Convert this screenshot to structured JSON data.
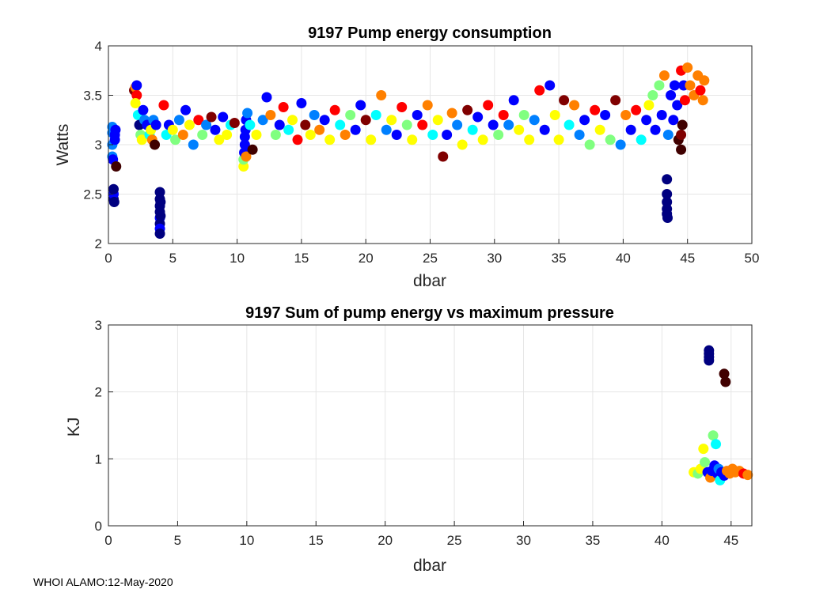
{
  "footer": "WHOI ALAMO:12-May-2020",
  "colormap": [
    "#000080",
    "#0000ff",
    "#0080ff",
    "#00ffff",
    "#80ff80",
    "#ffff00",
    "#ff8000",
    "#ff0000",
    "#800000",
    "#400000"
  ],
  "chart_data": [
    {
      "type": "scatter",
      "title": "9197 Pump energy consumption",
      "xlabel": "dbar",
      "ylabel": "Watts",
      "xlim": [
        0,
        50
      ],
      "ylim": [
        2,
        4
      ],
      "xticks": [
        0,
        5,
        10,
        15,
        20,
        25,
        30,
        35,
        40,
        45,
        50
      ],
      "yticks": [
        2,
        2.5,
        3,
        3.5,
        4
      ],
      "grid": true,
      "color_by": "profile index (jet colormap, early=dark blue, late=dark red)",
      "points": [
        [
          0.3,
          2.88,
          0.18
        ],
        [
          0.3,
          3.0,
          0.2
        ],
        [
          0.3,
          3.12,
          0.2
        ],
        [
          0.3,
          3.18,
          0.22
        ],
        [
          0.35,
          2.85,
          0.16
        ],
        [
          0.4,
          2.45,
          0.04
        ],
        [
          0.4,
          2.5,
          0.06
        ],
        [
          0.4,
          2.55,
          0.03
        ],
        [
          0.45,
          2.42,
          0.02
        ],
        [
          0.5,
          3.1,
          0.12
        ],
        [
          0.5,
          3.05,
          0.15
        ],
        [
          0.6,
          2.78,
          0.95
        ],
        [
          0.55,
          3.15,
          0.1
        ],
        [
          2.0,
          3.55,
          0.85
        ],
        [
          2.1,
          3.58,
          0.72
        ],
        [
          2.2,
          3.6,
          0.15
        ],
        [
          2.2,
          3.5,
          0.8
        ],
        [
          2.1,
          3.42,
          0.5
        ],
        [
          2.3,
          3.3,
          0.35
        ],
        [
          2.4,
          3.2,
          0.05
        ],
        [
          2.5,
          3.1,
          0.4
        ],
        [
          2.6,
          3.05,
          0.55
        ],
        [
          2.7,
          3.35,
          0.12
        ],
        [
          2.8,
          3.25,
          0.18
        ],
        [
          3.0,
          3.2,
          0.1
        ],
        [
          3.2,
          3.1,
          0.3
        ],
        [
          3.3,
          3.15,
          0.5
        ],
        [
          3.4,
          3.05,
          0.65
        ],
        [
          3.5,
          3.25,
          0.2
        ],
        [
          3.6,
          3.0,
          0.95
        ],
        [
          3.7,
          3.2,
          0.15
        ],
        [
          4.0,
          2.52,
          0.04
        ],
        [
          4.0,
          2.45,
          0.05
        ],
        [
          4.0,
          2.38,
          0.03
        ],
        [
          4.0,
          2.32,
          0.04
        ],
        [
          4.0,
          2.26,
          0.06
        ],
        [
          4.0,
          2.2,
          0.05
        ],
        [
          4.0,
          2.15,
          0.07
        ],
        [
          4.0,
          2.1,
          0.05
        ],
        [
          4.05,
          2.42,
          0.03
        ],
        [
          4.05,
          2.28,
          0.04
        ],
        [
          4.3,
          3.4,
          0.75
        ],
        [
          4.5,
          3.1,
          0.3
        ],
        [
          4.7,
          3.2,
          0.1
        ],
        [
          5.0,
          3.15,
          0.6
        ],
        [
          5.2,
          3.05,
          0.45
        ],
        [
          5.5,
          3.25,
          0.2
        ],
        [
          5.8,
          3.1,
          0.7
        ],
        [
          6.0,
          3.35,
          0.15
        ],
        [
          6.3,
          3.2,
          0.5
        ],
        [
          6.6,
          3.0,
          0.2
        ],
        [
          7.0,
          3.25,
          0.8
        ],
        [
          7.3,
          3.1,
          0.4
        ],
        [
          7.6,
          3.2,
          0.25
        ],
        [
          8.0,
          3.28,
          0.9
        ],
        [
          8.3,
          3.15,
          0.1
        ],
        [
          8.6,
          3.05,
          0.55
        ],
        [
          8.9,
          3.28,
          0.15
        ],
        [
          9.2,
          3.1,
          0.6
        ],
        [
          9.5,
          3.2,
          0.3
        ],
        [
          9.8,
          3.22,
          0.85
        ],
        [
          10.5,
          2.78,
          0.55
        ],
        [
          10.5,
          2.85,
          0.4
        ],
        [
          10.55,
          2.92,
          0.1
        ],
        [
          10.6,
          3.0,
          0.08
        ],
        [
          10.6,
          3.08,
          0.12
        ],
        [
          10.65,
          3.15,
          0.1
        ],
        [
          10.7,
          2.88,
          0.65
        ],
        [
          10.7,
          3.25,
          0.1
        ],
        [
          10.8,
          3.32,
          0.18
        ],
        [
          11.0,
          3.2,
          0.3
        ],
        [
          11.2,
          2.95,
          0.95
        ],
        [
          11.5,
          3.1,
          0.6
        ],
        [
          12.0,
          3.25,
          0.25
        ],
        [
          12.3,
          3.48,
          0.12
        ],
        [
          12.6,
          3.3,
          0.7
        ],
        [
          13.0,
          3.1,
          0.45
        ],
        [
          13.3,
          3.2,
          0.15
        ],
        [
          13.6,
          3.38,
          0.8
        ],
        [
          14.0,
          3.15,
          0.35
        ],
        [
          14.3,
          3.25,
          0.6
        ],
        [
          14.7,
          3.05,
          0.75
        ],
        [
          15.0,
          3.42,
          0.1
        ],
        [
          15.3,
          3.2,
          0.85
        ],
        [
          15.7,
          3.1,
          0.5
        ],
        [
          16.0,
          3.3,
          0.2
        ],
        [
          16.4,
          3.15,
          0.65
        ],
        [
          16.8,
          3.25,
          0.12
        ],
        [
          17.2,
          3.05,
          0.55
        ],
        [
          17.6,
          3.35,
          0.8
        ],
        [
          18.0,
          3.2,
          0.3
        ],
        [
          18.4,
          3.1,
          0.7
        ],
        [
          18.8,
          3.3,
          0.45
        ],
        [
          19.2,
          3.15,
          0.15
        ],
        [
          19.6,
          3.4,
          0.1
        ],
        [
          20.0,
          3.25,
          0.85
        ],
        [
          20.4,
          3.05,
          0.5
        ],
        [
          20.8,
          3.3,
          0.35
        ],
        [
          21.2,
          3.5,
          0.72
        ],
        [
          21.6,
          3.15,
          0.2
        ],
        [
          22.0,
          3.25,
          0.6
        ],
        [
          22.4,
          3.1,
          0.1
        ],
        [
          22.8,
          3.38,
          0.8
        ],
        [
          23.2,
          3.2,
          0.4
        ],
        [
          23.6,
          3.05,
          0.55
        ],
        [
          24.0,
          3.3,
          0.15
        ],
        [
          24.4,
          3.2,
          0.75
        ],
        [
          24.8,
          3.4,
          0.62
        ],
        [
          25.2,
          3.1,
          0.3
        ],
        [
          25.6,
          3.25,
          0.5
        ],
        [
          26.0,
          2.88,
          0.92
        ],
        [
          26.3,
          3.1,
          0.12
        ],
        [
          26.7,
          3.32,
          0.65
        ],
        [
          27.1,
          3.2,
          0.2
        ],
        [
          27.5,
          3.0,
          0.55
        ],
        [
          27.9,
          3.35,
          0.85
        ],
        [
          28.3,
          3.15,
          0.35
        ],
        [
          28.7,
          3.28,
          0.1
        ],
        [
          29.1,
          3.05,
          0.6
        ],
        [
          29.5,
          3.4,
          0.75
        ],
        [
          29.9,
          3.2,
          0.15
        ],
        [
          30.3,
          3.1,
          0.45
        ],
        [
          30.7,
          3.3,
          0.8
        ],
        [
          31.1,
          3.2,
          0.25
        ],
        [
          31.5,
          3.45,
          0.1
        ],
        [
          31.9,
          3.15,
          0.6
        ],
        [
          32.3,
          3.3,
          0.4
        ],
        [
          32.7,
          3.05,
          0.55
        ],
        [
          33.1,
          3.25,
          0.2
        ],
        [
          33.5,
          3.55,
          0.78
        ],
        [
          33.9,
          3.15,
          0.1
        ],
        [
          34.3,
          3.6,
          0.15
        ],
        [
          34.7,
          3.3,
          0.6
        ],
        [
          35.0,
          3.05,
          0.5
        ],
        [
          35.4,
          3.45,
          0.85
        ],
        [
          35.8,
          3.2,
          0.3
        ],
        [
          36.2,
          3.4,
          0.7
        ],
        [
          36.6,
          3.1,
          0.2
        ],
        [
          37.0,
          3.25,
          0.12
        ],
        [
          37.4,
          3.0,
          0.45
        ],
        [
          37.8,
          3.35,
          0.8
        ],
        [
          38.2,
          3.15,
          0.55
        ],
        [
          38.6,
          3.3,
          0.1
        ],
        [
          39.0,
          3.05,
          0.4
        ],
        [
          39.4,
          3.45,
          0.9
        ],
        [
          39.8,
          3.0,
          0.25
        ],
        [
          40.2,
          3.3,
          0.65
        ],
        [
          40.6,
          3.15,
          0.12
        ],
        [
          41.0,
          3.35,
          0.8
        ],
        [
          41.4,
          3.05,
          0.35
        ],
        [
          41.8,
          3.25,
          0.15
        ],
        [
          42.0,
          3.4,
          0.55
        ],
        [
          42.3,
          3.5,
          0.45
        ],
        [
          42.5,
          3.15,
          0.1
        ],
        [
          42.8,
          3.6,
          0.4
        ],
        [
          43.0,
          3.3,
          0.12
        ],
        [
          43.2,
          3.7,
          0.72
        ],
        [
          43.4,
          2.65,
          0.05
        ],
        [
          43.4,
          2.5,
          0.02
        ],
        [
          43.4,
          2.42,
          0.03
        ],
        [
          43.4,
          2.35,
          0.02
        ],
        [
          43.4,
          2.3,
          0.04
        ],
        [
          43.45,
          2.26,
          0.03
        ],
        [
          43.5,
          3.1,
          0.2
        ],
        [
          43.7,
          3.5,
          0.1
        ],
        [
          43.9,
          3.25,
          0.15
        ],
        [
          44.0,
          3.6,
          0.14
        ],
        [
          44.2,
          3.4,
          0.12
        ],
        [
          44.3,
          3.05,
          0.95
        ],
        [
          44.5,
          2.95,
          0.98
        ],
        [
          44.5,
          3.1,
          0.9
        ],
        [
          44.6,
          3.2,
          0.95
        ],
        [
          44.5,
          3.75,
          0.8
        ],
        [
          44.7,
          3.6,
          0.16
        ],
        [
          44.8,
          3.45,
          0.75
        ],
        [
          45.0,
          3.78,
          0.66
        ],
        [
          45.2,
          3.6,
          0.7
        ],
        [
          45.5,
          3.5,
          0.72
        ],
        [
          45.8,
          3.7,
          0.7
        ],
        [
          46.0,
          3.55,
          0.74
        ],
        [
          46.2,
          3.45,
          0.7
        ],
        [
          46.3,
          3.65,
          0.68
        ]
      ]
    },
    {
      "type": "scatter",
      "title": "9197 Sum of pump energy vs maximum pressure",
      "xlabel": "dbar",
      "ylabel": "KJ",
      "xlim": [
        0,
        46.5
      ],
      "ylim": [
        0,
        3
      ],
      "xticks": [
        0,
        5,
        10,
        15,
        20,
        25,
        30,
        35,
        40,
        45
      ],
      "yticks": [
        0,
        1,
        2,
        3
      ],
      "grid": true,
      "color_by": "profile index (jet colormap)",
      "points": [
        [
          43.4,
          2.62,
          0.05
        ],
        [
          43.4,
          2.57,
          0.03
        ],
        [
          43.4,
          2.52,
          0.04
        ],
        [
          43.4,
          2.47,
          0.02
        ],
        [
          44.5,
          2.27,
          0.98
        ],
        [
          44.6,
          2.15,
          0.97
        ],
        [
          42.3,
          0.8,
          0.55
        ],
        [
          42.6,
          0.78,
          0.4
        ],
        [
          42.8,
          0.85,
          0.6
        ],
        [
          43.0,
          1.15,
          0.5
        ],
        [
          43.1,
          0.95,
          0.45
        ],
        [
          43.3,
          0.8,
          0.15
        ],
        [
          43.5,
          0.72,
          0.7
        ],
        [
          43.6,
          0.82,
          0.12
        ],
        [
          43.7,
          1.35,
          0.45
        ],
        [
          43.8,
          0.9,
          0.1
        ],
        [
          43.9,
          1.22,
          0.35
        ],
        [
          44.0,
          0.78,
          0.14
        ],
        [
          44.1,
          0.85,
          0.2
        ],
        [
          44.2,
          0.68,
          0.32
        ],
        [
          44.3,
          0.8,
          0.12
        ],
        [
          44.5,
          0.75,
          0.15
        ],
        [
          44.7,
          0.82,
          0.66
        ],
        [
          44.9,
          0.78,
          0.7
        ],
        [
          45.1,
          0.85,
          0.72
        ],
        [
          45.3,
          0.8,
          0.68
        ],
        [
          45.6,
          0.82,
          0.7
        ],
        [
          45.9,
          0.78,
          0.74
        ],
        [
          46.2,
          0.76,
          0.7
        ]
      ]
    }
  ]
}
